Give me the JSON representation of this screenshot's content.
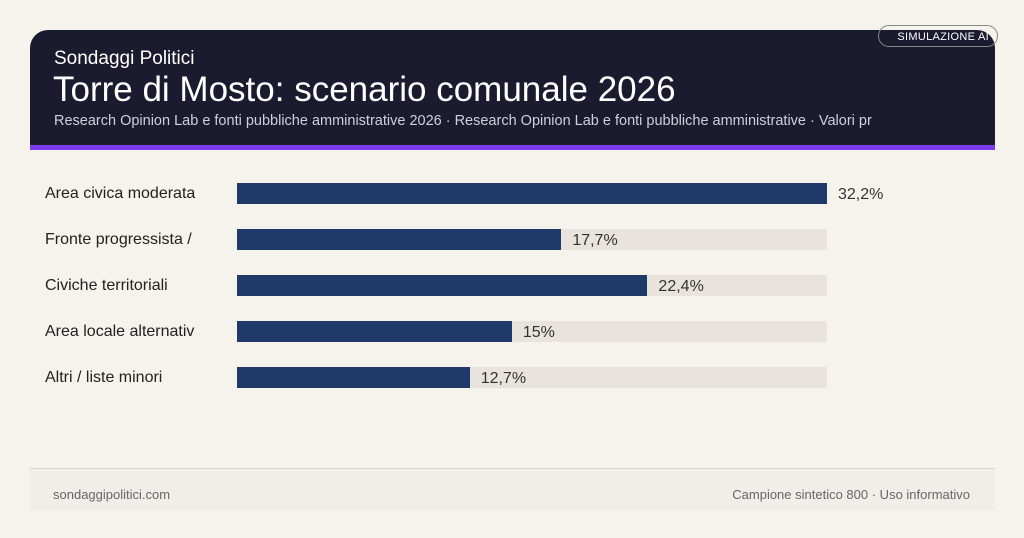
{
  "header": {
    "kicker": "Sondaggi Politici",
    "title": "Torre di Mosto: scenario comunale 2026",
    "subtitle": "Research Opinion Lab e fonti pubbliche amministrative 2026 · Research Opinion Lab e fonti pubbliche amministrative · Valori pr",
    "badge": "SIMULAZIONE AI"
  },
  "colors": {
    "header_bg": "#1b1b2f",
    "accent": "#7c3aed",
    "bar": "#1f3a68",
    "track": "#e8e3dc"
  },
  "chart_data": {
    "type": "bar",
    "orientation": "horizontal",
    "categories": [
      "Area civica moderata",
      "Fronte progressista /",
      "Civiche territoriali",
      "Area locale alternativ",
      "Altri / liste minori"
    ],
    "values": [
      32.2,
      17.7,
      22.4,
      15,
      12.7
    ],
    "value_labels": [
      "32,2%",
      "17,7%",
      "22,4%",
      "15%",
      "12,7%"
    ],
    "xlim": [
      0,
      32.2
    ],
    "grid": false,
    "unit": "%"
  },
  "footer": {
    "left": "sondaggipolitici.com",
    "right": "Campione sintetico 800 · Uso informativo"
  }
}
